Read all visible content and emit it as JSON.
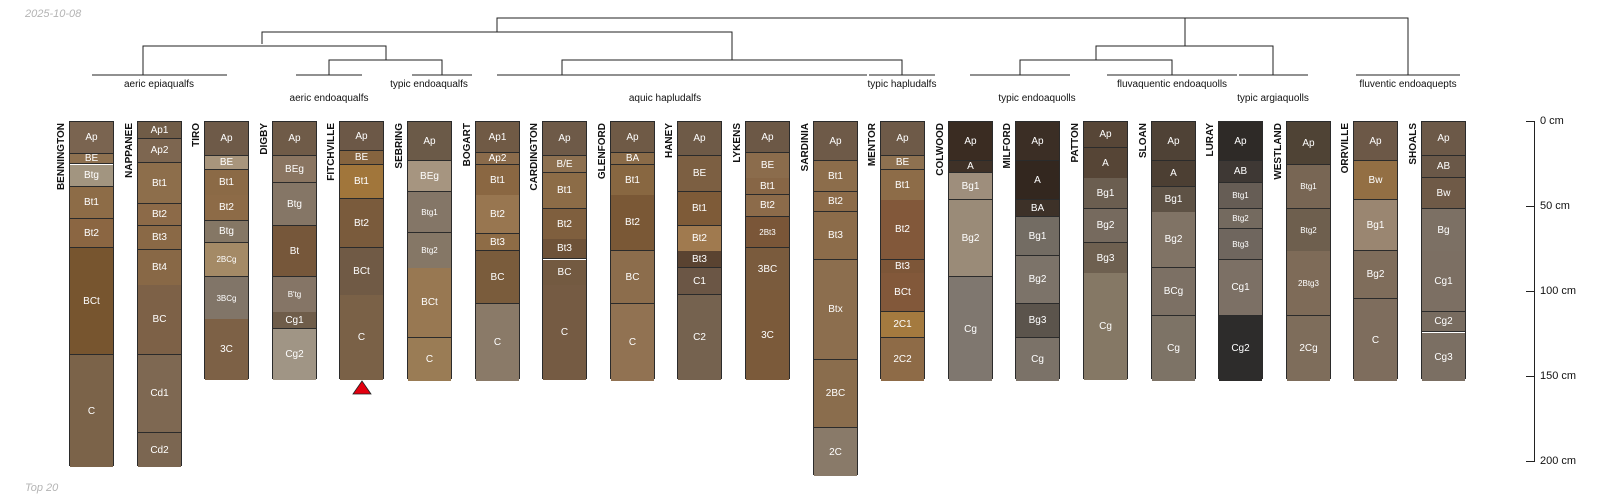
{
  "date": "2025-10-08",
  "footer": "Top 20",
  "marker_color": "#e3000f",
  "groups": [
    {
      "label": "aeric epiaqualfs"
    },
    {
      "label": "aeric endoaqualfs"
    },
    {
      "label": "typic endoaqualfs"
    },
    {
      "label": "aquic hapludalfs"
    },
    {
      "label": "typic hapludalfs"
    },
    {
      "label": "typic endoaquolls"
    },
    {
      "label": "fluvaquentic endoaquolls"
    },
    {
      "label": "typic argiaquolls"
    },
    {
      "label": "fluventic endoaquepts"
    }
  ],
  "depth_axis": {
    "unit": "cm",
    "labels": [
      "0 cm",
      "50 cm",
      "100 cm",
      "150 cm",
      "200 cm"
    ],
    "max_depth": 200
  },
  "profiles": [
    {
      "name": "BENNINGTON",
      "horizons": [
        {
          "name": "Ap",
          "top": 0,
          "bottom": 19,
          "color": "#7a6450"
        },
        {
          "name": "BE",
          "top": 19,
          "bottom": 25,
          "color": "#8e7150"
        },
        {
          "name": "Btg",
          "top": 25,
          "bottom": 38,
          "color": "#a29580"
        },
        {
          "name": "Bt1",
          "top": 38,
          "bottom": 57,
          "color": "#8d6c47"
        },
        {
          "name": "Bt2",
          "top": 57,
          "bottom": 74,
          "color": "#8b6642"
        },
        {
          "name": "BCt",
          "top": 74,
          "bottom": 137,
          "color": "#77552f"
        },
        {
          "name": "C",
          "top": 137,
          "bottom": 203,
          "color": "#7b6349"
        }
      ]
    },
    {
      "name": "NAPPANEE",
      "horizons": [
        {
          "name": "Ap1",
          "top": 0,
          "bottom": 10,
          "color": "#705c47"
        },
        {
          "name": "Ap2",
          "top": 10,
          "bottom": 24,
          "color": "#7d6650"
        },
        {
          "name": "Bt1",
          "top": 24,
          "bottom": 48,
          "color": "#8d6e4b"
        },
        {
          "name": "Bt2",
          "top": 48,
          "bottom": 61,
          "color": "#8c6a48"
        },
        {
          "name": "Bt3",
          "top": 61,
          "bottom": 75,
          "color": "#8a6946"
        },
        {
          "name": "Bt4",
          "top": 75,
          "bottom": 96,
          "color": "#886846"
        },
        {
          "name": "BC",
          "top": 96,
          "bottom": 137,
          "color": "#7d6147"
        },
        {
          "name": "Cd1",
          "top": 137,
          "bottom": 183,
          "color": "#7e6852"
        },
        {
          "name": "Cd2",
          "top": 183,
          "bottom": 203,
          "color": "#7b6651"
        }
      ]
    },
    {
      "name": "TIRO",
      "horizons": [
        {
          "name": "Ap",
          "top": 0,
          "bottom": 20,
          "color": "#6e5a48"
        },
        {
          "name": "BE",
          "top": 20,
          "bottom": 28,
          "color": "#a8957c"
        },
        {
          "name": "Bt1",
          "top": 28,
          "bottom": 43,
          "color": "#8b6a46"
        },
        {
          "name": "Bt2",
          "top": 43,
          "bottom": 58,
          "color": "#8d6b47"
        },
        {
          "name": "Btg",
          "top": 58,
          "bottom": 71,
          "color": "#857765"
        },
        {
          "name": "2BCg",
          "top": 71,
          "bottom": 91,
          "color": "#a48a66",
          "small": true
        },
        {
          "name": "3BCg",
          "top": 91,
          "bottom": 116,
          "color": "#817568",
          "small": true
        },
        {
          "name": "3C",
          "top": 116,
          "bottom": 152,
          "color": "#7d6146"
        }
      ]
    },
    {
      "name": "DIGBY",
      "horizons": [
        {
          "name": "Ap",
          "top": 0,
          "bottom": 20,
          "color": "#6f5b48"
        },
        {
          "name": "BEg",
          "top": 20,
          "bottom": 36,
          "color": "#8a7561"
        },
        {
          "name": "Btg",
          "top": 36,
          "bottom": 61,
          "color": "#857666"
        },
        {
          "name": "Bt",
          "top": 61,
          "bottom": 91,
          "color": "#76573a"
        },
        {
          "name": "B'tg",
          "top": 91,
          "bottom": 112,
          "color": "#857566",
          "small": true
        },
        {
          "name": "Cg1",
          "top": 112,
          "bottom": 122,
          "color": "#6f5d4a"
        },
        {
          "name": "Cg2",
          "top": 122,
          "bottom": 152,
          "color": "#a09585"
        }
      ]
    },
    {
      "name": "FITCHVILLE",
      "horizons": [
        {
          "name": "Ap",
          "top": 0,
          "bottom": 17,
          "color": "#6c5847"
        },
        {
          "name": "BE",
          "top": 17,
          "bottom": 25,
          "color": "#85643f"
        },
        {
          "name": "Bt1",
          "top": 25,
          "bottom": 45,
          "color": "#a1763b"
        },
        {
          "name": "Bt2",
          "top": 45,
          "bottom": 74,
          "color": "#7a5b3c"
        },
        {
          "name": "BCt",
          "top": 74,
          "bottom": 102,
          "color": "#705a45"
        },
        {
          "name": "C",
          "top": 102,
          "bottom": 152,
          "color": "#7a6147"
        }
      ]
    },
    {
      "name": "SEBRING",
      "horizons": [
        {
          "name": "Ap",
          "top": 0,
          "bottom": 23,
          "color": "#6b5a48"
        },
        {
          "name": "BEg",
          "top": 23,
          "bottom": 41,
          "color": "#a69580"
        },
        {
          "name": "Btg1",
          "top": 41,
          "bottom": 65,
          "color": "#847667",
          "small": true
        },
        {
          "name": "Btg2",
          "top": 65,
          "bottom": 86,
          "color": "#857766",
          "small": true
        },
        {
          "name": "BCt",
          "top": 86,
          "bottom": 127,
          "color": "#987852"
        },
        {
          "name": "C",
          "top": 127,
          "bottom": 152,
          "color": "#9a7c55"
        }
      ]
    },
    {
      "name": "BOGART",
      "horizons": [
        {
          "name": "Ap1",
          "top": 0,
          "bottom": 18,
          "color": "#705a45"
        },
        {
          "name": "Ap2",
          "top": 18,
          "bottom": 25,
          "color": "#8a6b4b"
        },
        {
          "name": "Bt1",
          "top": 25,
          "bottom": 43,
          "color": "#8a6742"
        },
        {
          "name": "Bt2",
          "top": 43,
          "bottom": 66,
          "color": "#987650"
        },
        {
          "name": "Bt3",
          "top": 66,
          "bottom": 76,
          "color": "#8e6c46"
        },
        {
          "name": "BC",
          "top": 76,
          "bottom": 107,
          "color": "#7a5c3c"
        },
        {
          "name": "C",
          "top": 107,
          "bottom": 152,
          "color": "#8a7a68"
        }
      ]
    },
    {
      "name": "CARDINGTON",
      "horizons": [
        {
          "name": "Ap",
          "top": 0,
          "bottom": 20,
          "color": "#6e5a48"
        },
        {
          "name": "B/E",
          "top": 20,
          "bottom": 30,
          "color": "#8d7050"
        },
        {
          "name": "Bt1",
          "top": 30,
          "bottom": 51,
          "color": "#8c6c47"
        },
        {
          "name": "Bt2",
          "top": 51,
          "bottom": 69,
          "color": "#7f5f3e"
        },
        {
          "name": "Bt3",
          "top": 69,
          "bottom": 81,
          "color": "#6e5238"
        },
        {
          "name": "BC",
          "top": 81,
          "bottom": 96,
          "color": "#735a41"
        },
        {
          "name": "C",
          "top": 96,
          "bottom": 152,
          "color": "#755b43"
        }
      ]
    },
    {
      "name": "GLENFORD",
      "horizons": [
        {
          "name": "Ap",
          "top": 0,
          "bottom": 18,
          "color": "#6f5a46"
        },
        {
          "name": "BA",
          "top": 18,
          "bottom": 25,
          "color": "#8a6b48"
        },
        {
          "name": "Bt1",
          "top": 25,
          "bottom": 43,
          "color": "#886741"
        },
        {
          "name": "Bt2",
          "top": 43,
          "bottom": 76,
          "color": "#7a5836"
        },
        {
          "name": "BC",
          "top": 76,
          "bottom": 107,
          "color": "#8c6d4c"
        },
        {
          "name": "C",
          "top": 107,
          "bottom": 152,
          "color": "#917252"
        }
      ]
    },
    {
      "name": "HANEY",
      "horizons": [
        {
          "name": "Ap",
          "top": 0,
          "bottom": 20,
          "color": "#6e5a47"
        },
        {
          "name": "BE",
          "top": 20,
          "bottom": 41,
          "color": "#7c5f42"
        },
        {
          "name": "Bt1",
          "top": 41,
          "bottom": 61,
          "color": "#7e5b38"
        },
        {
          "name": "Bt2",
          "top": 61,
          "bottom": 76,
          "color": "#a07a4f"
        },
        {
          "name": "Bt3",
          "top": 76,
          "bottom": 86,
          "color": "#5a4331"
        },
        {
          "name": "C1",
          "top": 86,
          "bottom": 102,
          "color": "#6b5645"
        },
        {
          "name": "C2",
          "top": 102,
          "bottom": 152,
          "color": "#75624f"
        }
      ]
    },
    {
      "name": "LYKENS",
      "horizons": [
        {
          "name": "Ap",
          "top": 0,
          "bottom": 18,
          "color": "#6c5846"
        },
        {
          "name": "BE",
          "top": 18,
          "bottom": 33,
          "color": "#8b6c4c"
        },
        {
          "name": "Bt1",
          "top": 33,
          "bottom": 43,
          "color": "#876646"
        },
        {
          "name": "Bt2",
          "top": 43,
          "bottom": 56,
          "color": "#8c6b4a"
        },
        {
          "name": "2Bt3",
          "top": 56,
          "bottom": 74,
          "color": "#7a5638",
          "small": true
        },
        {
          "name": "3BC",
          "top": 74,
          "bottom": 99,
          "color": "#7a5b3d"
        },
        {
          "name": "3C",
          "top": 99,
          "bottom": 152,
          "color": "#7b5a3a"
        }
      ]
    },
    {
      "name": "SARDINIA",
      "horizons": [
        {
          "name": "Ap",
          "top": 0,
          "bottom": 23,
          "color": "#6e5a48"
        },
        {
          "name": "Bt1",
          "top": 23,
          "bottom": 41,
          "color": "#8c6d4b"
        },
        {
          "name": "Bt2",
          "top": 41,
          "bottom": 53,
          "color": "#8c6b49"
        },
        {
          "name": "Bt3",
          "top": 53,
          "bottom": 81,
          "color": "#8c6c4a"
        },
        {
          "name": "Btx",
          "top": 81,
          "bottom": 140,
          "color": "#8c6e4e"
        },
        {
          "name": "2BC",
          "top": 140,
          "bottom": 180,
          "color": "#8a6d4d"
        },
        {
          "name": "2C",
          "top": 180,
          "bottom": 208,
          "color": "#897a69"
        }
      ]
    },
    {
      "name": "MENTOR",
      "horizons": [
        {
          "name": "Ap",
          "top": 0,
          "bottom": 20,
          "color": "#6e5a48"
        },
        {
          "name": "BE",
          "top": 20,
          "bottom": 28,
          "color": "#8e7150"
        },
        {
          "name": "Bt1",
          "top": 28,
          "bottom": 46,
          "color": "#8d6c48"
        },
        {
          "name": "Bt2",
          "top": 46,
          "bottom": 81,
          "color": "#82583a"
        },
        {
          "name": "Bt3",
          "top": 81,
          "bottom": 89,
          "color": "#7d5638"
        },
        {
          "name": "BCt",
          "top": 89,
          "bottom": 112,
          "color": "#82583a"
        },
        {
          "name": "2C1",
          "top": 112,
          "bottom": 127,
          "color": "#a47a3f"
        },
        {
          "name": "2C2",
          "top": 127,
          "bottom": 152,
          "color": "#8e6b47"
        }
      ]
    },
    {
      "name": "COLWOOD",
      "horizons": [
        {
          "name": "Ap",
          "top": 0,
          "bottom": 23,
          "color": "#3a2c22"
        },
        {
          "name": "A",
          "top": 23,
          "bottom": 30,
          "color": "#3f3127"
        },
        {
          "name": "Bg1",
          "top": 30,
          "bottom": 46,
          "color": "#9e8e7c"
        },
        {
          "name": "Bg2",
          "top": 46,
          "bottom": 91,
          "color": "#9a8b78"
        },
        {
          "name": "Cg",
          "top": 91,
          "bottom": 152,
          "color": "#7f776f"
        }
      ]
    },
    {
      "name": "MILFORD",
      "horizons": [
        {
          "name": "Ap",
          "top": 0,
          "bottom": 23,
          "color": "#3b2e25"
        },
        {
          "name": "A",
          "top": 23,
          "bottom": 46,
          "color": "#33271f"
        },
        {
          "name": "BA",
          "top": 46,
          "bottom": 56,
          "color": "#3d3128"
        },
        {
          "name": "Bg1",
          "top": 56,
          "bottom": 79,
          "color": "#736c63"
        },
        {
          "name": "Bg2",
          "top": 79,
          "bottom": 107,
          "color": "#7c7369"
        },
        {
          "name": "Bg3",
          "top": 107,
          "bottom": 127,
          "color": "#5b544c"
        },
        {
          "name": "Cg",
          "top": 127,
          "bottom": 152,
          "color": "#7b7268"
        }
      ]
    },
    {
      "name": "PATTON",
      "horizons": [
        {
          "name": "Ap",
          "top": 0,
          "bottom": 15,
          "color": "#574637"
        },
        {
          "name": "A",
          "top": 15,
          "bottom": 33,
          "color": "#564536"
        },
        {
          "name": "Bg1",
          "top": 33,
          "bottom": 51,
          "color": "#6b5e50"
        },
        {
          "name": "Bg2",
          "top": 51,
          "bottom": 71,
          "color": "#766a5e"
        },
        {
          "name": "Bg3",
          "top": 71,
          "bottom": 89,
          "color": "#6e6050"
        },
        {
          "name": "Cg",
          "top": 89,
          "bottom": 152,
          "color": "#857865"
        }
      ]
    },
    {
      "name": "SLOAN",
      "horizons": [
        {
          "name": "Ap",
          "top": 0,
          "bottom": 23,
          "color": "#4f4236"
        },
        {
          "name": "A",
          "top": 23,
          "bottom": 38,
          "color": "#4c3f33"
        },
        {
          "name": "Bg1",
          "top": 38,
          "bottom": 53,
          "color": "#5e5245"
        },
        {
          "name": "Bg2",
          "top": 53,
          "bottom": 86,
          "color": "#807365"
        },
        {
          "name": "BCg",
          "top": 86,
          "bottom": 114,
          "color": "#7c7064"
        },
        {
          "name": "Cg",
          "top": 114,
          "bottom": 152,
          "color": "#7d7366"
        }
      ]
    },
    {
      "name": "LURAY",
      "horizons": [
        {
          "name": "Ap",
          "top": 0,
          "bottom": 23,
          "color": "#2e2a27"
        },
        {
          "name": "AB",
          "top": 23,
          "bottom": 36,
          "color": "#3e3834"
        },
        {
          "name": "Btg1",
          "top": 36,
          "bottom": 51,
          "color": "#665d55",
          "small": true
        },
        {
          "name": "Btg2",
          "top": 51,
          "bottom": 63,
          "color": "#746a5f",
          "small": true
        },
        {
          "name": "Btg3",
          "top": 63,
          "bottom": 81,
          "color": "#6f665e",
          "small": true
        },
        {
          "name": "Cg1",
          "top": 81,
          "bottom": 114,
          "color": "#7c7065"
        },
        {
          "name": "Cg2",
          "top": 114,
          "bottom": 152,
          "color": "#2d2c2b"
        }
      ]
    },
    {
      "name": "WESTLAND",
      "horizons": [
        {
          "name": "Ap",
          "top": 0,
          "bottom": 25,
          "color": "#4f4335"
        },
        {
          "name": "Btg1",
          "top": 25,
          "bottom": 51,
          "color": "#786654",
          "small": true
        },
        {
          "name": "Btg2",
          "top": 51,
          "bottom": 76,
          "color": "#6e5f4e",
          "small": true
        },
        {
          "name": "2Btg3",
          "top": 76,
          "bottom": 114,
          "color": "#7e6b58",
          "small": true
        },
        {
          "name": "2Cg",
          "top": 114,
          "bottom": 152,
          "color": "#7e6d5b"
        }
      ]
    },
    {
      "name": "ORRVILLE",
      "horizons": [
        {
          "name": "Ap",
          "top": 0,
          "bottom": 23,
          "color": "#6c5847"
        },
        {
          "name": "Bw",
          "top": 23,
          "bottom": 46,
          "color": "#936f44"
        },
        {
          "name": "Bg1",
          "top": 46,
          "bottom": 76,
          "color": "#9a8671"
        },
        {
          "name": "Bg2",
          "top": 76,
          "bottom": 104,
          "color": "#7f6d5b"
        },
        {
          "name": "C",
          "top": 104,
          "bottom": 152,
          "color": "#7e6d5d"
        }
      ]
    },
    {
      "name": "SHOALS",
      "horizons": [
        {
          "name": "Ap",
          "top": 0,
          "bottom": 20,
          "color": "#6c5948"
        },
        {
          "name": "AB",
          "top": 20,
          "bottom": 33,
          "color": "#6a5848"
        },
        {
          "name": "Bw",
          "top": 33,
          "bottom": 51,
          "color": "#6f5a47"
        },
        {
          "name": "Bg",
          "top": 51,
          "bottom": 76,
          "color": "#7c7064"
        },
        {
          "name": "Cg1",
          "top": 76,
          "bottom": 112,
          "color": "#7c6f63"
        },
        {
          "name": "Cg2",
          "top": 112,
          "bottom": 124,
          "color": "#786c60"
        },
        {
          "name": "Cg3",
          "top": 124,
          "bottom": 152,
          "color": "#7b6f63"
        }
      ]
    }
  ]
}
